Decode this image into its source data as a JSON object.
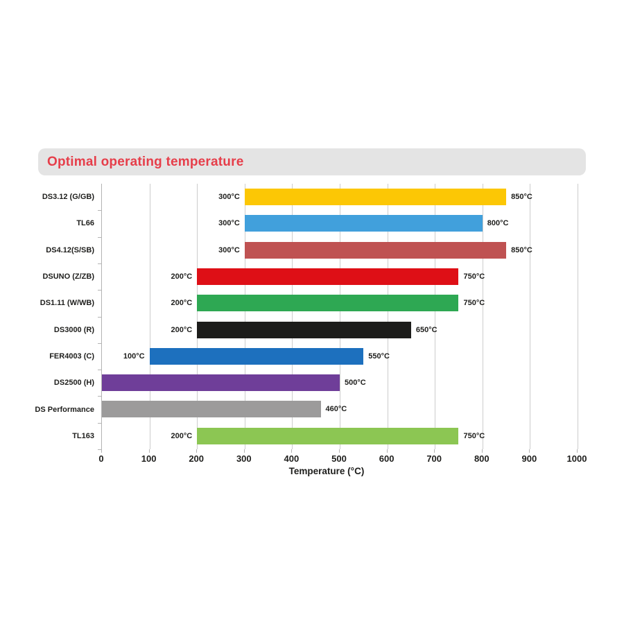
{
  "title": {
    "text": "Optimal operating temperature",
    "color": "#e63e4a",
    "banner_bg": "#e4e4e4"
  },
  "chart_data": {
    "type": "bar",
    "orientation": "horizontal",
    "title": "Optimal operating temperature",
    "xlabel": "Temperature (°C)",
    "ylabel": "",
    "xlim": [
      0,
      1000
    ],
    "xticks": [
      0,
      100,
      200,
      300,
      400,
      500,
      600,
      700,
      800,
      900,
      1000
    ],
    "grid": true,
    "legend": false,
    "rows": [
      {
        "label": "DS3.12 (G/GB)",
        "start": 300,
        "end": 850,
        "start_label": "300°C",
        "end_label": "850°C",
        "color": "#fcc705"
      },
      {
        "label": "TL66",
        "start": 300,
        "end": 800,
        "start_label": "300°C",
        "end_label": "800°C",
        "color": "#41a0dc"
      },
      {
        "label": "DS4.12(S/SB)",
        "start": 300,
        "end": 850,
        "start_label": "300°C",
        "end_label": "850°C",
        "color": "#bf5252"
      },
      {
        "label": "DSUNO (Z/ZB)",
        "start": 200,
        "end": 750,
        "start_label": "200°C",
        "end_label": "750°C",
        "color": "#de0f16"
      },
      {
        "label": "DS1.11 (W/WB)",
        "start": 200,
        "end": 750,
        "start_label": "200°C",
        "end_label": "750°C",
        "color": "#2ea853"
      },
      {
        "label": "DS3000 (R)",
        "start": 200,
        "end": 650,
        "start_label": "200°C",
        "end_label": "650°C",
        "color": "#1d1d1b"
      },
      {
        "label": "FER4003 (C)",
        "start": 100,
        "end": 550,
        "start_label": "100°C",
        "end_label": "550°C",
        "color": "#1d70be"
      },
      {
        "label": "DS2500 (H)",
        "start": 0,
        "end": 500,
        "start_label": "",
        "end_label": "500°C",
        "color": "#6f3e99"
      },
      {
        "label": "DS Performance",
        "start": 0,
        "end": 460,
        "start_label": "",
        "end_label": "460°C",
        "color": "#9c9b9b"
      },
      {
        "label": "TL163",
        "start": 200,
        "end": 750,
        "start_label": "200°C",
        "end_label": "750°C",
        "color": "#8cc653"
      }
    ]
  }
}
